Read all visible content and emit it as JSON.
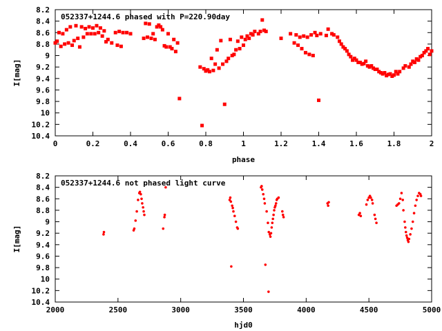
{
  "chart_data": [
    {
      "type": "scatter",
      "title": "052337+1244.6 phased with P=220.90day",
      "xlabel": "phase",
      "ylabel": "I[mag]",
      "xlim": [
        0,
        2
      ],
      "ylim": [
        10.4,
        8.2
      ],
      "y_inverted": true,
      "xticks": [
        "0",
        "0.2",
        "0.4",
        "0.6",
        "0.8",
        "1",
        "1.2",
        "1.4",
        "1.6",
        "1.8",
        "2"
      ],
      "yticks": [
        "8.2",
        "8.4",
        "8.6",
        "8.8",
        "9",
        "9.2",
        "9.4",
        "9.6",
        "9.8",
        "10",
        "10.2",
        "10.4"
      ],
      "color": "#ff0000",
      "points": [
        [
          0.0,
          8.78
        ],
        [
          0.01,
          8.75
        ],
        [
          0.02,
          8.6
        ],
        [
          0.03,
          8.84
        ],
        [
          0.04,
          8.62
        ],
        [
          0.05,
          8.8
        ],
        [
          0.06,
          8.55
        ],
        [
          0.07,
          8.78
        ],
        [
          0.08,
          8.5
        ],
        [
          0.09,
          8.82
        ],
        [
          0.1,
          8.74
        ],
        [
          0.11,
          8.48
        ],
        [
          0.12,
          8.7
        ],
        [
          0.13,
          8.85
        ],
        [
          0.14,
          8.5
        ],
        [
          0.15,
          8.68
        ],
        [
          0.16,
          8.53
        ],
        [
          0.17,
          8.62
        ],
        [
          0.18,
          8.5
        ],
        [
          0.19,
          8.62
        ],
        [
          0.2,
          8.52
        ],
        [
          0.21,
          8.62
        ],
        [
          0.22,
          8.48
        ],
        [
          0.23,
          8.6
        ],
        [
          0.24,
          8.52
        ],
        [
          0.25,
          8.66
        ],
        [
          0.26,
          8.57
        ],
        [
          0.27,
          8.76
        ],
        [
          0.28,
          8.72
        ],
        [
          0.3,
          8.78
        ],
        [
          0.32,
          8.6
        ],
        [
          0.33,
          8.82
        ],
        [
          0.34,
          8.58
        ],
        [
          0.35,
          8.84
        ],
        [
          0.36,
          8.6
        ],
        [
          0.38,
          8.6
        ],
        [
          0.4,
          8.62
        ],
        [
          0.47,
          8.7
        ],
        [
          0.48,
          8.44
        ],
        [
          0.49,
          8.68
        ],
        [
          0.5,
          8.45
        ],
        [
          0.51,
          8.7
        ],
        [
          0.52,
          8.62
        ],
        [
          0.53,
          8.72
        ],
        [
          0.54,
          8.5
        ],
        [
          0.55,
          8.47
        ],
        [
          0.56,
          8.5
        ],
        [
          0.57,
          8.55
        ],
        [
          0.58,
          8.83
        ],
        [
          0.59,
          8.85
        ],
        [
          0.6,
          8.62
        ],
        [
          0.61,
          8.85
        ],
        [
          0.62,
          8.88
        ],
        [
          0.63,
          8.72
        ],
        [
          0.64,
          8.93
        ],
        [
          0.65,
          8.78
        ],
        [
          0.66,
          9.75
        ],
        [
          0.77,
          9.2
        ],
        [
          0.78,
          10.22
        ],
        [
          0.79,
          9.23
        ],
        [
          0.8,
          9.27
        ],
        [
          0.81,
          9.25
        ],
        [
          0.82,
          9.28
        ],
        [
          0.83,
          9.05
        ],
        [
          0.84,
          9.26
        ],
        [
          0.85,
          9.15
        ],
        [
          0.86,
          8.9
        ],
        [
          0.87,
          9.22
        ],
        [
          0.88,
          8.74
        ],
        [
          0.89,
          9.15
        ],
        [
          0.9,
          9.85
        ],
        [
          0.91,
          9.1
        ],
        [
          0.92,
          9.05
        ],
        [
          0.93,
          8.72
        ],
        [
          0.94,
          9.0
        ],
        [
          0.95,
          8.98
        ],
        [
          0.96,
          8.9
        ],
        [
          0.97,
          8.75
        ],
        [
          0.98,
          8.88
        ],
        [
          0.99,
          8.68
        ],
        [
          1.0,
          8.82
        ],
        [
          1.01,
          8.72
        ],
        [
          1.02,
          8.66
        ],
        [
          1.03,
          8.7
        ],
        [
          1.04,
          8.62
        ],
        [
          1.05,
          8.64
        ],
        [
          1.06,
          8.58
        ],
        [
          1.08,
          8.62
        ],
        [
          1.09,
          8.58
        ],
        [
          1.1,
          8.38
        ],
        [
          1.11,
          8.56
        ],
        [
          1.12,
          8.58
        ],
        [
          1.2,
          8.7
        ],
        [
          1.25,
          8.62
        ],
        [
          1.27,
          8.78
        ],
        [
          1.28,
          8.64
        ],
        [
          1.29,
          8.82
        ],
        [
          1.3,
          8.68
        ],
        [
          1.31,
          8.88
        ],
        [
          1.32,
          8.66
        ],
        [
          1.33,
          8.95
        ],
        [
          1.34,
          8.68
        ],
        [
          1.35,
          8.98
        ],
        [
          1.36,
          8.64
        ],
        [
          1.37,
          9.0
        ],
        [
          1.38,
          8.6
        ],
        [
          1.39,
          8.65
        ],
        [
          1.4,
          9.78
        ],
        [
          1.41,
          8.62
        ],
        [
          1.44,
          8.65
        ],
        [
          1.45,
          8.54
        ],
        [
          1.47,
          8.62
        ],
        [
          1.48,
          8.64
        ],
        [
          1.5,
          8.68
        ],
        [
          1.51,
          8.75
        ],
        [
          1.52,
          8.8
        ],
        [
          1.53,
          8.85
        ],
        [
          1.54,
          8.88
        ],
        [
          1.55,
          8.92
        ],
        [
          1.56,
          8.98
        ],
        [
          1.57,
          9.02
        ],
        [
          1.58,
          9.08
        ],
        [
          1.59,
          9.05
        ],
        [
          1.6,
          9.08
        ],
        [
          1.61,
          9.12
        ],
        [
          1.62,
          9.12
        ],
        [
          1.63,
          9.15
        ],
        [
          1.64,
          9.14
        ],
        [
          1.65,
          9.1
        ],
        [
          1.66,
          9.18
        ],
        [
          1.67,
          9.2
        ],
        [
          1.68,
          9.18
        ],
        [
          1.69,
          9.22
        ],
        [
          1.7,
          9.24
        ],
        [
          1.71,
          9.24
        ],
        [
          1.72,
          9.28
        ],
        [
          1.73,
          9.3
        ],
        [
          1.74,
          9.32
        ],
        [
          1.75,
          9.3
        ],
        [
          1.76,
          9.35
        ],
        [
          1.77,
          9.33
        ],
        [
          1.78,
          9.32
        ],
        [
          1.79,
          9.36
        ],
        [
          1.8,
          9.34
        ],
        [
          1.81,
          9.28
        ],
        [
          1.82,
          9.32
        ],
        [
          1.83,
          9.28
        ],
        [
          1.85,
          9.22
        ],
        [
          1.86,
          9.18
        ],
        [
          1.88,
          9.2
        ],
        [
          1.89,
          9.15
        ],
        [
          1.9,
          9.1
        ],
        [
          1.91,
          9.12
        ],
        [
          1.92,
          9.06
        ],
        [
          1.93,
          9.08
        ],
        [
          1.94,
          9.02
        ],
        [
          1.95,
          9.0
        ],
        [
          1.96,
          8.95
        ],
        [
          1.97,
          8.92
        ],
        [
          1.98,
          8.88
        ],
        [
          1.99,
          8.98
        ],
        [
          2.0,
          8.92
        ]
      ]
    },
    {
      "type": "scatter",
      "title": "052337+1244.6 not phased light curve",
      "xlabel": "hjd0",
      "ylabel": "I[mag]",
      "xlim": [
        2000,
        5000
      ],
      "ylim": [
        10.4,
        8.2
      ],
      "y_inverted": true,
      "xticks": [
        "2000",
        "2500",
        "3000",
        "3500",
        "4000",
        "4500",
        "5000"
      ],
      "yticks": [
        "8.2",
        "8.4",
        "8.6",
        "8.8",
        "9",
        "9.2",
        "9.4",
        "9.6",
        "9.8",
        "10",
        "10.2",
        "10.4"
      ],
      "color": "#ff0000",
      "points": [
        [
          2385,
          9.22
        ],
        [
          2388,
          9.18
        ],
        [
          2625,
          9.15
        ],
        [
          2630,
          9.12
        ],
        [
          2640,
          8.98
        ],
        [
          2650,
          8.82
        ],
        [
          2660,
          8.62
        ],
        [
          2670,
          8.5
        ],
        [
          2675,
          8.48
        ],
        [
          2682,
          8.52
        ],
        [
          2688,
          8.6
        ],
        [
          2693,
          8.68
        ],
        [
          2700,
          8.75
        ],
        [
          2705,
          8.82
        ],
        [
          2710,
          8.88
        ],
        [
          2860,
          9.12
        ],
        [
          2870,
          8.92
        ],
        [
          2873,
          8.88
        ],
        [
          2880,
          8.4
        ],
        [
          3390,
          8.62
        ],
        [
          3395,
          8.58
        ],
        [
          3400,
          8.65
        ],
        [
          3403,
          9.78
        ],
        [
          3410,
          8.72
        ],
        [
          3415,
          8.76
        ],
        [
          3420,
          8.82
        ],
        [
          3430,
          8.9
        ],
        [
          3440,
          9.0
        ],
        [
          3450,
          9.1
        ],
        [
          3455,
          9.12
        ],
        [
          3640,
          8.4
        ],
        [
          3645,
          8.38
        ],
        [
          3650,
          8.44
        ],
        [
          3658,
          8.52
        ],
        [
          3665,
          8.6
        ],
        [
          3670,
          8.68
        ],
        [
          3675,
          9.75
        ],
        [
          3685,
          8.82
        ],
        [
          3695,
          9.02
        ],
        [
          3700,
          10.22
        ],
        [
          3702,
          9.18
        ],
        [
          3710,
          9.22
        ],
        [
          3715,
          9.26
        ],
        [
          3720,
          9.2
        ],
        [
          3725,
          9.1
        ],
        [
          3730,
          9.02
        ],
        [
          3735,
          8.95
        ],
        [
          3740,
          8.88
        ],
        [
          3745,
          8.8
        ],
        [
          3750,
          8.75
        ],
        [
          3755,
          8.72
        ],
        [
          3760,
          8.68
        ],
        [
          3765,
          8.62
        ],
        [
          3770,
          8.6
        ],
        [
          3780,
          8.58
        ],
        [
          3810,
          8.82
        ],
        [
          3815,
          8.88
        ],
        [
          3820,
          8.92
        ],
        [
          4170,
          8.68
        ],
        [
          4175,
          8.72
        ],
        [
          4180,
          8.66
        ],
        [
          4420,
          8.88
        ],
        [
          4428,
          8.85
        ],
        [
          4435,
          8.9
        ],
        [
          4480,
          8.7
        ],
        [
          4490,
          8.62
        ],
        [
          4500,
          8.58
        ],
        [
          4508,
          8.55
        ],
        [
          4515,
          8.58
        ],
        [
          4525,
          8.62
        ],
        [
          4530,
          8.68
        ],
        [
          4545,
          8.88
        ],
        [
          4552,
          8.95
        ],
        [
          4560,
          9.02
        ],
        [
          4720,
          8.72
        ],
        [
          4730,
          8.7
        ],
        [
          4740,
          8.68
        ],
        [
          4750,
          8.6
        ],
        [
          4760,
          8.5
        ],
        [
          4770,
          8.62
        ],
        [
          4775,
          8.8
        ],
        [
          4785,
          9.0
        ],
        [
          4790,
          9.1
        ],
        [
          4795,
          9.18
        ],
        [
          4800,
          9.24
        ],
        [
          4805,
          9.28
        ],
        [
          4810,
          9.32
        ],
        [
          4815,
          9.35
        ],
        [
          4820,
          9.3
        ],
        [
          4830,
          9.22
        ],
        [
          4840,
          9.12
        ],
        [
          4850,
          9.0
        ],
        [
          4860,
          8.85
        ],
        [
          4870,
          8.72
        ],
        [
          4880,
          8.62
        ],
        [
          4890,
          8.55
        ],
        [
          4900,
          8.5
        ],
        [
          4910,
          8.52
        ],
        [
          4915,
          8.55
        ]
      ]
    }
  ]
}
